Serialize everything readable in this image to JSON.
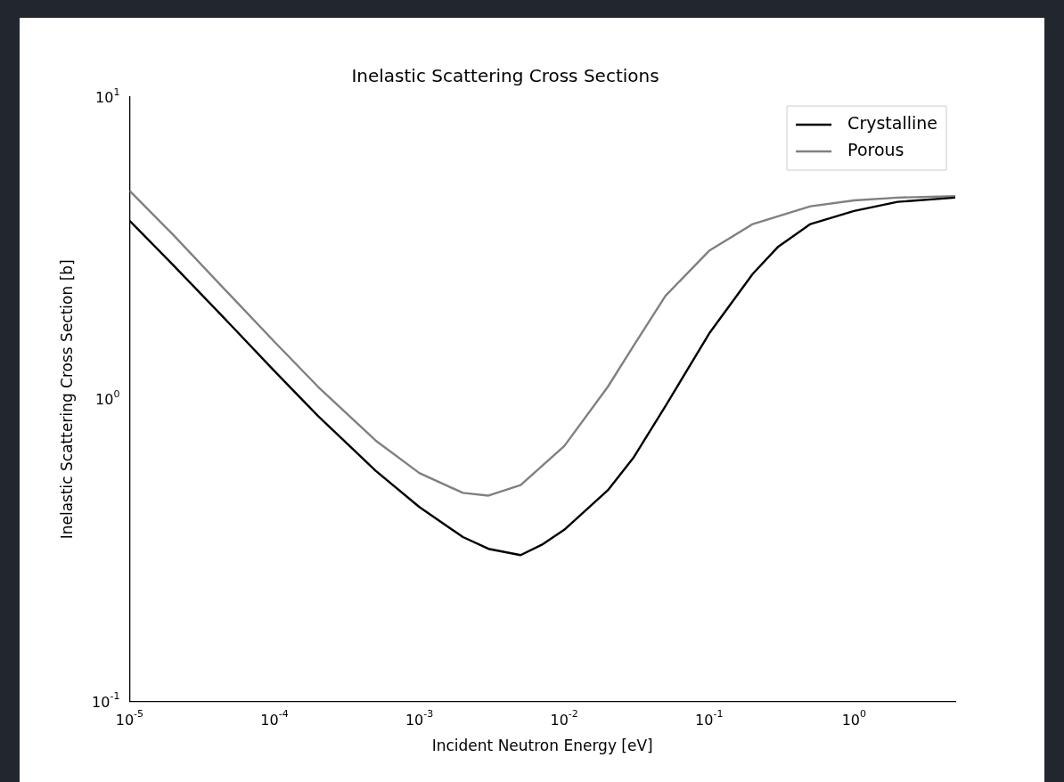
{
  "chart_data": {
    "type": "line",
    "title": "Inelastic Scattering Cross Sections",
    "xlabel": "Incident Neutron Energy [eV]",
    "ylabel": "Inelastic Scattering Cross Section [b]",
    "log": "xy",
    "legend": "top right",
    "grid": false,
    "marker": "none",
    "line_style": "solid",
    "xlim": [
      1e-05,
      5
    ],
    "ylim": [
      0.1,
      10
    ],
    "xticks": [
      {
        "value": 1e-05,
        "label": "10$^{-5}$"
      },
      {
        "value": 0.0001,
        "label": "10$^{-4}$"
      },
      {
        "value": 0.001,
        "label": "10$^{-3}$"
      },
      {
        "value": 0.01,
        "label": "10$^{-2}$"
      },
      {
        "value": 0.1,
        "label": "10$^{-1}$"
      },
      {
        "value": 1,
        "label": "10$^{0}$"
      }
    ],
    "yticks": [
      {
        "value": 0.1,
        "label": "10$^{-1}$"
      },
      {
        "value": 1,
        "label": "10$^{0}$"
      },
      {
        "value": 10,
        "label": "10$^{1}$"
      }
    ],
    "x": [
      1e-05,
      2e-05,
      5e-05,
      0.0001,
      0.0002,
      0.0005,
      0.001,
      0.002,
      0.003,
      0.005,
      0.007,
      0.01,
      0.02,
      0.03,
      0.05,
      0.1,
      0.2,
      0.3,
      0.5,
      1,
      2,
      5
    ],
    "series": [
      {
        "name": "Crystalline",
        "color": "#000000",
        "values": [
          3.9,
          2.78,
          1.76,
          1.24,
          0.88,
          0.58,
          0.44,
          0.35,
          0.32,
          0.305,
          0.33,
          0.37,
          0.5,
          0.64,
          0.95,
          1.65,
          2.6,
          3.2,
          3.8,
          4.2,
          4.5,
          4.65
        ]
      },
      {
        "name": "Porous",
        "color": "#808080",
        "x": [
          1e-05,
          2e-05,
          5e-05,
          0.0001,
          0.0002,
          0.0005,
          0.001,
          0.002,
          0.003,
          0.005,
          0.01,
          0.02,
          0.03,
          0.05,
          0.1,
          0.2,
          0.5,
          1,
          2,
          5
        ],
        "values": [
          4.9,
          3.5,
          2.2,
          1.55,
          1.1,
          0.73,
          0.57,
          0.49,
          0.48,
          0.52,
          0.7,
          1.1,
          1.5,
          2.2,
          3.1,
          3.8,
          4.35,
          4.55,
          4.65,
          4.7
        ]
      }
    ]
  }
}
